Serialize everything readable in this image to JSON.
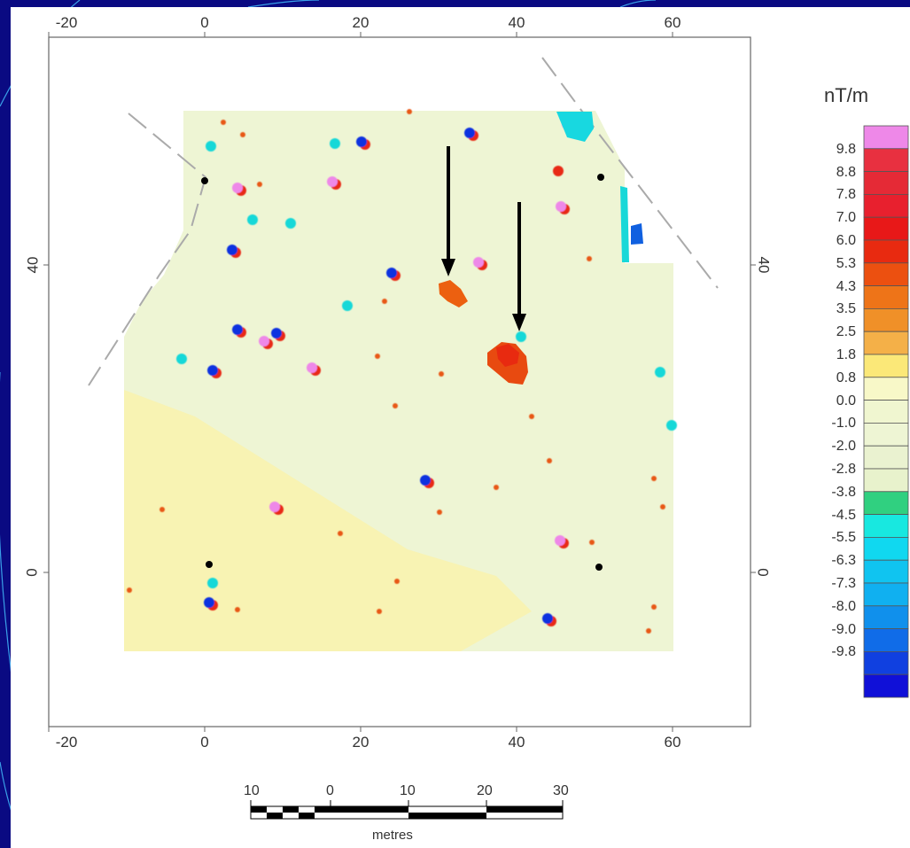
{
  "map": {
    "x_axis": {
      "top_ticks": [
        "-20",
        "0",
        "20",
        "40",
        "60"
      ],
      "bottom_ticks": [
        "-20",
        "0",
        "20",
        "40",
        "60"
      ]
    },
    "y_axis": {
      "left_ticks": [
        "40",
        "0"
      ],
      "right_ticks": [
        "40",
        "0"
      ]
    },
    "legend": {
      "title": "nT/m",
      "entries": [
        {
          "label": "",
          "color": "#ee88e8"
        },
        {
          "label": "9.8",
          "color": "#e83040"
        },
        {
          "label": "8.8",
          "color": "#e52a36"
        },
        {
          "label": "7.8",
          "color": "#e8202e"
        },
        {
          "label": "7.0",
          "color": "#e81818"
        },
        {
          "label": "6.0",
          "color": "#e82a10"
        },
        {
          "label": "5.3",
          "color": "#ec5010"
        },
        {
          "label": "4.3",
          "color": "#ee7418"
        },
        {
          "label": "3.5",
          "color": "#f09028"
        },
        {
          "label": "2.5",
          "color": "#f4b048"
        },
        {
          "label": "1.8",
          "color": "#fbe878"
        },
        {
          "label": "0.8",
          "color": "#f8f8c8"
        },
        {
          "label": "0.0",
          "color": "#f0f6d0"
        },
        {
          "label": "-1.0",
          "color": "#eef5d4"
        },
        {
          "label": "-2.0",
          "color": "#eaf2d0"
        },
        {
          "label": "-2.8",
          "color": "#e8f2cc"
        },
        {
          "label": "-3.8",
          "color": "#30d080"
        },
        {
          "label": "-4.5",
          "color": "#18e8e0"
        },
        {
          "label": "-5.5",
          "color": "#10d8f0"
        },
        {
          "label": "-6.3",
          "color": "#10c4f0"
        },
        {
          "label": "-7.3",
          "color": "#10b0f0"
        },
        {
          "label": "-8.0",
          "color": "#1090ec"
        },
        {
          "label": "-9.0",
          "color": "#106ce8"
        },
        {
          "label": "-9.8",
          "color": "#1040e0"
        },
        {
          "label": "",
          "color": "#1010d8"
        }
      ]
    },
    "scale_bar": {
      "labels": [
        "10",
        "0",
        "10",
        "20",
        "30"
      ],
      "unit": "metres"
    }
  }
}
